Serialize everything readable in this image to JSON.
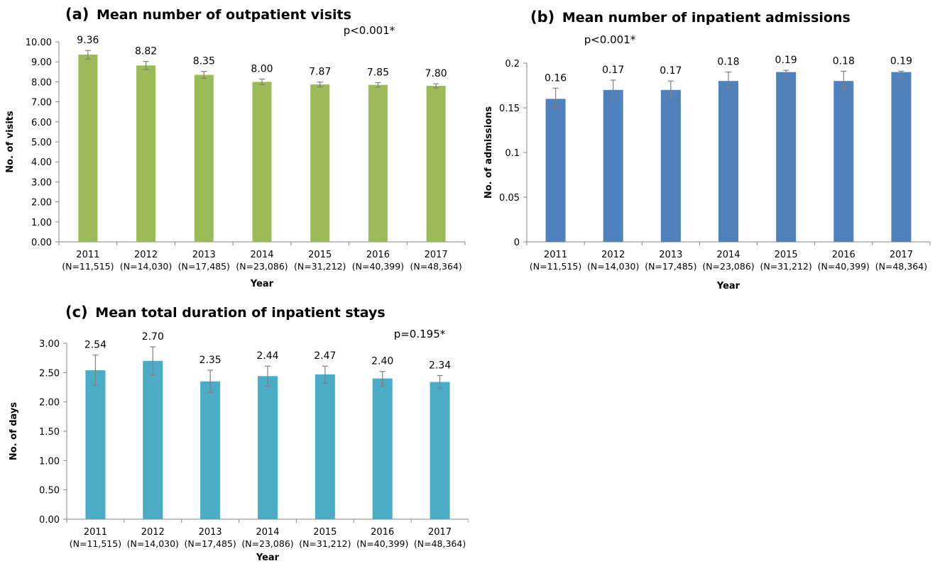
{
  "chart_data": [
    {
      "id": "a",
      "type": "bar",
      "panel_letter": "(a)",
      "title": "Mean number of outpatient visits",
      "xlabel": "Year",
      "ylabel": "No. of visits",
      "p_value": "p<0.001*",
      "categories": [
        "2011",
        "2012",
        "2013",
        "2014",
        "2015",
        "2016",
        "2017"
      ],
      "category_n": [
        "(N=11,515)",
        "(N=14,030)",
        "(N=17,485)",
        "(N=23,086)",
        "(N=31,212)",
        "(N=40,399)",
        "(N=48,364)"
      ],
      "values": [
        9.36,
        8.82,
        8.35,
        8.0,
        7.87,
        7.85,
        7.8
      ],
      "value_labels": [
        "9.36",
        "8.82",
        "8.35",
        "8.00",
        "7.87",
        "7.85",
        "7.80"
      ],
      "error_low": [
        9.15,
        8.62,
        8.18,
        7.86,
        7.75,
        7.74,
        7.7
      ],
      "error_high": [
        9.57,
        9.02,
        8.52,
        8.14,
        7.99,
        7.96,
        7.9
      ],
      "ylim": [
        0,
        10
      ],
      "yticks": [
        "0.00",
        "1.00",
        "2.00",
        "3.00",
        "4.00",
        "5.00",
        "6.00",
        "7.00",
        "8.00",
        "9.00",
        "10.00"
      ],
      "color": "#9bbb59",
      "grid": false
    },
    {
      "id": "b",
      "type": "bar",
      "panel_letter": "(b)",
      "title": "Mean number of inpatient admissions",
      "xlabel": "Year",
      "ylabel": "No. of admissions",
      "p_value": "p<0.001*",
      "categories": [
        "2011",
        "2012",
        "2013",
        "2014",
        "2015",
        "2016",
        "2017"
      ],
      "category_n": [
        "(N=11,515)",
        "(N=14,030)",
        "(N=17,485)",
        "(N=23,086)",
        "(N=31,212)",
        "(N=40,399)",
        "(N=48,364)"
      ],
      "values": [
        0.16,
        0.17,
        0.17,
        0.18,
        0.19,
        0.18,
        0.19
      ],
      "value_labels": [
        "0.16",
        "0.17",
        "0.17",
        "0.18",
        "0.19",
        "0.18",
        "0.19"
      ],
      "error_low": [
        0.149,
        0.16,
        0.161,
        0.172,
        0.183,
        0.171,
        0.184
      ],
      "error_high": [
        0.172,
        0.181,
        0.18,
        0.19,
        0.192,
        0.191,
        0.191
      ],
      "ylim": [
        0,
        0.2
      ],
      "yticks": [
        "0",
        "0.05",
        "0.1",
        "0.15",
        "0.2"
      ],
      "color": "#4f81bd",
      "grid": false
    },
    {
      "id": "c",
      "type": "bar",
      "panel_letter": "(c)",
      "title": "Mean total duration of inpatient stays",
      "xlabel": "Year",
      "ylabel": "No. of days",
      "p_value": "p=0.195*",
      "categories": [
        "2011",
        "2012",
        "2013",
        "2014",
        "2015",
        "2016",
        "2017"
      ],
      "category_n": [
        "(N=11,515)",
        "(N=14,030)",
        "(N=17,485)",
        "(N=23,086)",
        "(N=31,212)",
        "(N=40,399)",
        "(N=48,364)"
      ],
      "values": [
        2.54,
        2.7,
        2.35,
        2.44,
        2.47,
        2.4,
        2.34
      ],
      "value_labels": [
        "2.54",
        "2.70",
        "2.35",
        "2.44",
        "2.47",
        "2.40",
        "2.34"
      ],
      "error_low": [
        2.28,
        2.46,
        2.16,
        2.27,
        2.32,
        2.27,
        2.23
      ],
      "error_high": [
        2.8,
        2.94,
        2.54,
        2.61,
        2.61,
        2.52,
        2.45
      ],
      "ylim": [
        0,
        3
      ],
      "yticks": [
        "0.00",
        "0.50",
        "1.00",
        "1.50",
        "2.00",
        "2.50",
        "3.00"
      ],
      "color": "#4bacc6",
      "grid": false
    }
  ]
}
